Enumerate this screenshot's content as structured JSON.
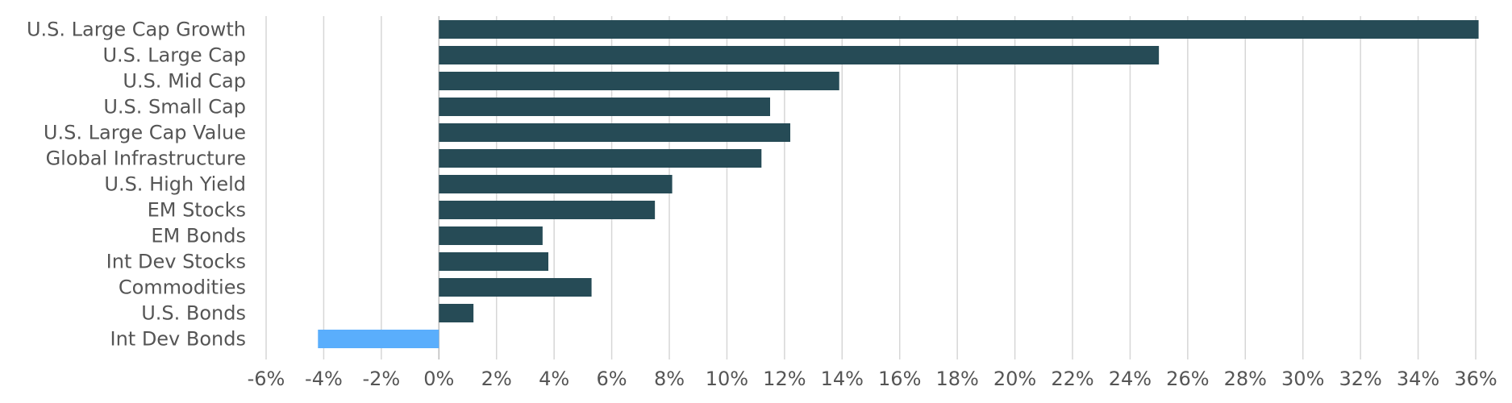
{
  "chart_data": {
    "type": "bar",
    "orientation": "horizontal",
    "categories": [
      "U.S. Large Cap Growth",
      "U.S. Large Cap",
      "U.S. Mid Cap",
      "U.S. Small Cap",
      "U.S. Large Cap Value",
      "Global Infrastructure",
      "U.S. High Yield",
      "EM Stocks",
      "EM Bonds",
      "Int Dev Stocks",
      "Commodities",
      "U.S. Bonds",
      "Int Dev Bonds"
    ],
    "values": [
      36.1,
      25.0,
      13.9,
      11.5,
      12.2,
      11.2,
      8.1,
      7.5,
      3.6,
      3.8,
      5.3,
      1.2,
      -4.2
    ],
    "xlim": [
      -6,
      36
    ],
    "xticks": [
      -6,
      -4,
      -2,
      0,
      2,
      4,
      6,
      8,
      10,
      12,
      14,
      16,
      18,
      20,
      22,
      24,
      26,
      28,
      30,
      32,
      34,
      36
    ],
    "tick_suffix": "%",
    "grid": true,
    "colors": {
      "positive": "#264b56",
      "negative": "#5aaefc"
    },
    "title": "",
    "xlabel": "",
    "ylabel": ""
  }
}
